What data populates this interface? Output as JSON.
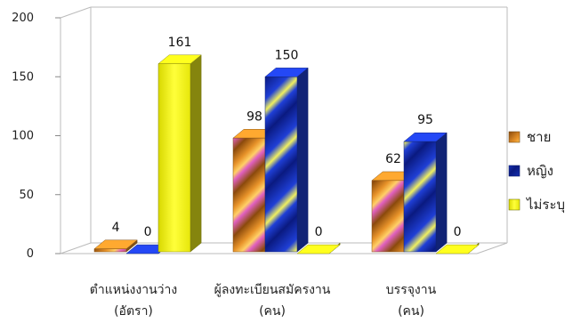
{
  "chart_data": {
    "type": "bar",
    "categories": [
      [
        "ตำแหน่งงานว่าง",
        "(อัตรา)"
      ],
      [
        "ผู้ลงทะเบียนสมัครงาน",
        "(คน)"
      ],
      [
        "บรรจุงาน",
        "(คน)"
      ]
    ],
    "series": [
      {
        "name": "ชาย",
        "values": [
          4,
          98,
          62
        ],
        "color": "#E8932A"
      },
      {
        "name": "หญิง",
        "values": [
          0,
          150,
          95
        ],
        "color": "#1F3FD6"
      },
      {
        "name": "ไม่ระบุ",
        "values": [
          161,
          0,
          0
        ],
        "color": "#F2F21A"
      }
    ],
    "ylim": [
      0,
      200
    ],
    "yticks": [
      0,
      50,
      100,
      150,
      200
    ],
    "grid": false,
    "legend_position": "right",
    "data_labels": true,
    "style": "3d-clustered-column"
  }
}
